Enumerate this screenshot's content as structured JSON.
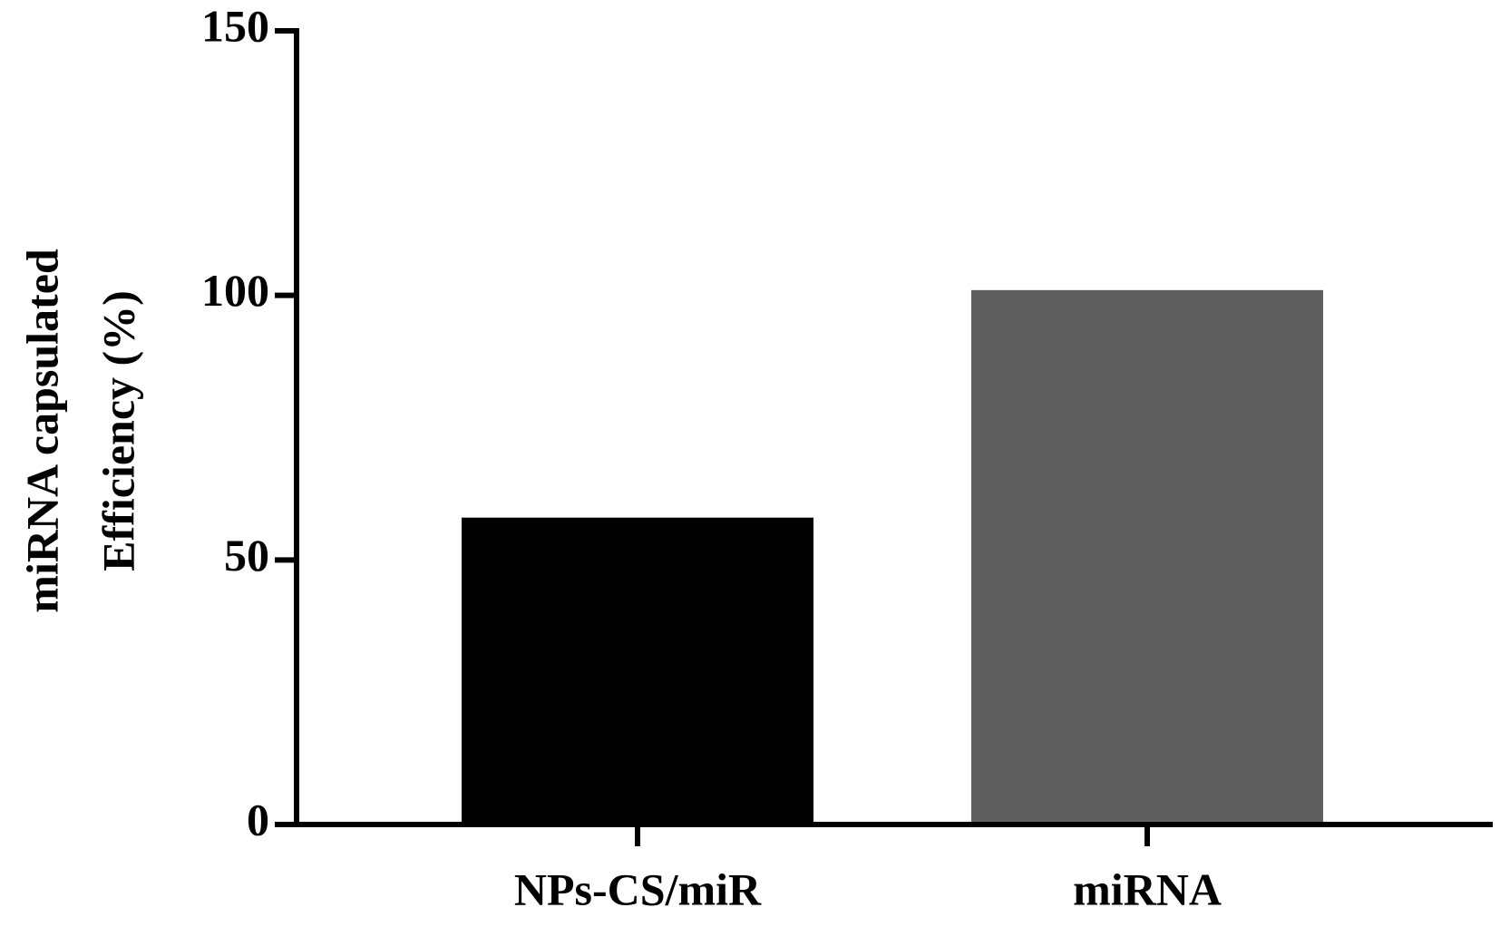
{
  "chart_data": {
    "type": "bar",
    "y_label": [
      "miRNA capsulated",
      "Efficiency (%)"
    ],
    "categories": [
      "NPs-CS/miR",
      "miRNA"
    ],
    "values": [
      58,
      101
    ],
    "colors": [
      "#000000",
      "#5f5f5f"
    ],
    "ylim": [
      0,
      150
    ],
    "yticks": [
      0,
      50,
      100,
      150
    ],
    "grid": false
  }
}
